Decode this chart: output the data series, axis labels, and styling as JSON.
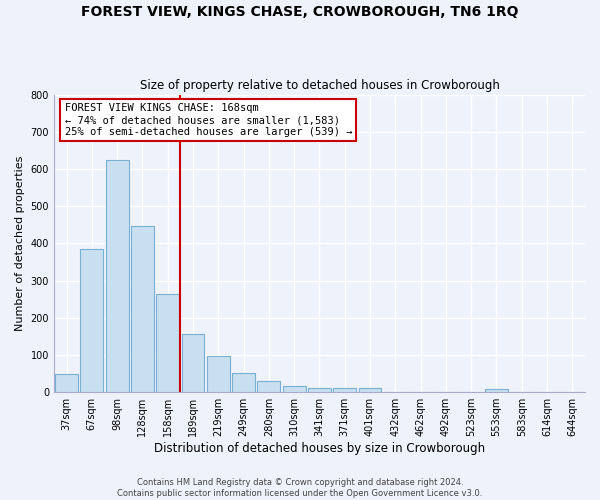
{
  "title": "FOREST VIEW, KINGS CHASE, CROWBOROUGH, TN6 1RQ",
  "subtitle": "Size of property relative to detached houses in Crowborough",
  "xlabel": "Distribution of detached houses by size in Crowborough",
  "ylabel": "Number of detached properties",
  "bar_labels": [
    "37sqm",
    "67sqm",
    "98sqm",
    "128sqm",
    "158sqm",
    "189sqm",
    "219sqm",
    "249sqm",
    "280sqm",
    "310sqm",
    "341sqm",
    "371sqm",
    "401sqm",
    "432sqm",
    "462sqm",
    "492sqm",
    "523sqm",
    "553sqm",
    "583sqm",
    "614sqm",
    "644sqm"
  ],
  "bar_values": [
    48,
    385,
    623,
    446,
    265,
    157,
    98,
    51,
    30,
    16,
    10,
    11,
    10,
    0,
    0,
    0,
    0,
    8,
    0,
    0,
    0
  ],
  "bar_color": "#c8dff0",
  "bar_edge_color": "#7aafd4",
  "vline_x": 4.5,
  "annotation_text": "FOREST VIEW KINGS CHASE: 168sqm\n← 74% of detached houses are smaller (1,583)\n25% of semi-detached houses are larger (539) →",
  "annotation_box_color": "#ffffff",
  "annotation_box_edge": "#cc0000",
  "vline_color": "#cc0000",
  "ylim": [
    0,
    800
  ],
  "yticks": [
    0,
    100,
    200,
    300,
    400,
    500,
    600,
    700,
    800
  ],
  "footnote": "Contains HM Land Registry data © Crown copyright and database right 2024.\nContains public sector information licensed under the Open Government Licence v3.0.",
  "background_color": "#eef2fa",
  "grid_color": "#ffffff",
  "title_fontsize": 10,
  "subtitle_fontsize": 8.5,
  "ylabel_fontsize": 8,
  "xlabel_fontsize": 8.5,
  "tick_fontsize": 7,
  "footnote_fontsize": 6,
  "annotation_fontsize": 7.5
}
